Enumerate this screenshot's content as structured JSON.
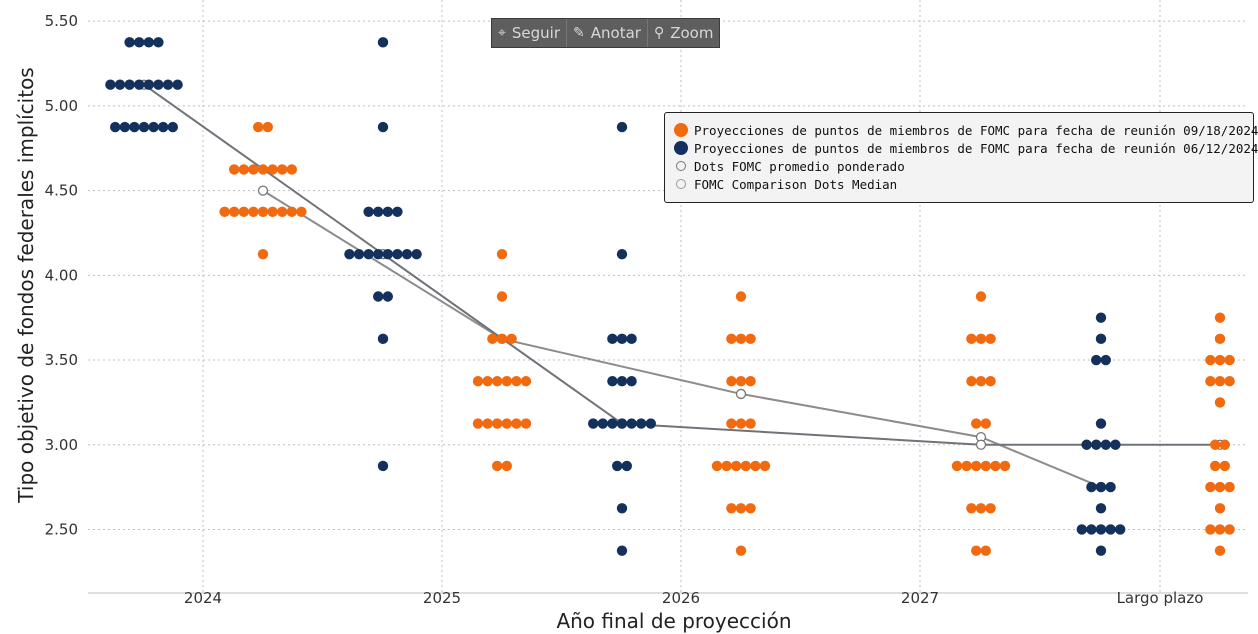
{
  "toolbar": {
    "follow_label": "Seguir",
    "annotate_label": "Anotar",
    "zoom_label": "Zoom"
  },
  "legend": {
    "items": [
      "Proyecciones de puntos de miembros de FOMC para fecha de reunión 09/18/2024",
      "Proyecciones de puntos de miembros de FOMC para fecha de reunión 06/12/2024",
      "Dots FOMC promedio ponderado",
      "FOMC Comparison Dots Median"
    ]
  },
  "colors": {
    "sep": "#f26a10",
    "jun": "#14305c",
    "line": "#8a8a8a",
    "grid": "#bfbfbf"
  },
  "chart_data": {
    "type": "scatter",
    "xlabel": "Año final de proyección",
    "ylabel": "Tipo objetivo de fondos federales implícitos",
    "x_ticks": [
      "2024",
      "2025",
      "2026",
      "2027",
      "Largo plazo"
    ],
    "y_ticks": [
      "2.50",
      "3.00",
      "3.50",
      "4.00",
      "4.50",
      "5.00",
      "5.50"
    ],
    "ylim": [
      2.125,
      5.625
    ],
    "grid": true,
    "legend_position": "right",
    "series": [
      {
        "name": "Proyecciones de puntos de miembros de FOMC para fecha de reunión 09/18/2024",
        "color": "#f26a10",
        "groups": [
          {
            "x": "2024",
            "counts": {
              "4.875": 2,
              "4.625": 7,
              "4.375": 9,
              "4.125": 1
            }
          },
          {
            "x": "2025",
            "counts": {
              "4.125": 1,
              "3.875": 1,
              "3.625": 3,
              "3.375": 6,
              "3.125": 6,
              "2.875": 2
            }
          },
          {
            "x": "2026",
            "counts": {
              "3.875": 1,
              "3.625": 3,
              "3.375": 3,
              "3.125": 3,
              "2.875": 6,
              "2.625": 3,
              "2.375": 1
            }
          },
          {
            "x": "2027",
            "counts": {
              "3.875": 1,
              "3.625": 3,
              "3.375": 3,
              "3.125": 2,
              "2.875": 6,
              "2.625": 3,
              "2.375": 2
            }
          },
          {
            "x": "Largo plazo",
            "counts": {
              "3.75": 1,
              "3.625": 1,
              "3.5": 3,
              "3.375": 3,
              "3.25": 1,
              "3.0": 2,
              "2.875": 2,
              "2.75": 3,
              "2.625": 1,
              "2.5": 3,
              "2.375": 1
            }
          }
        ]
      },
      {
        "name": "Proyecciones de puntos de miembros de FOMC para fecha de reunión 06/12/2024",
        "color": "#14305c",
        "groups": [
          {
            "x": "2024",
            "counts": {
              "5.375": 4,
              "5.125": 8,
              "4.875": 7
            }
          },
          {
            "x": "2025",
            "counts": {
              "5.375": 1,
              "4.875": 1,
              "4.375": 4,
              "4.125": 8,
              "3.875": 2,
              "3.625": 1,
              "2.875": 1
            }
          },
          {
            "x": "2026",
            "counts": {
              "4.875": 1,
              "4.125": 1,
              "3.625": 3,
              "3.375": 3,
              "3.125": 7,
              "2.875": 2,
              "2.625": 1,
              "2.375": 1
            }
          },
          {
            "x": "Largo plazo",
            "counts": {
              "3.75": 1,
              "3.625": 1,
              "3.5": 2,
              "3.125": 1,
              "3.0": 4,
              "2.75": 3,
              "2.625": 1,
              "2.5": 5,
              "2.375": 1
            }
          }
        ]
      },
      {
        "name": "Dots FOMC promedio ponderado",
        "color": "#777777",
        "type": "line",
        "points": [
          {
            "x": "2024",
            "y": 4.5
          },
          {
            "x": "2025",
            "y": 3.625
          },
          {
            "x": "2026",
            "y": 3.3
          },
          {
            "x": "2027",
            "y": 3.045
          },
          {
            "x": "Largo plazo",
            "y": 2.75
          }
        ]
      },
      {
        "name": "FOMC Comparison Dots Median",
        "color": "#5a6068",
        "type": "line",
        "points": [
          {
            "x": "2024",
            "y": 5.125
          },
          {
            "x": "2025",
            "y": 4.125
          },
          {
            "x": "2026",
            "y": 3.125
          },
          {
            "x": "2027",
            "y": 3.0
          },
          {
            "x": "Largo plazo",
            "y": 3.0
          }
        ]
      }
    ]
  }
}
